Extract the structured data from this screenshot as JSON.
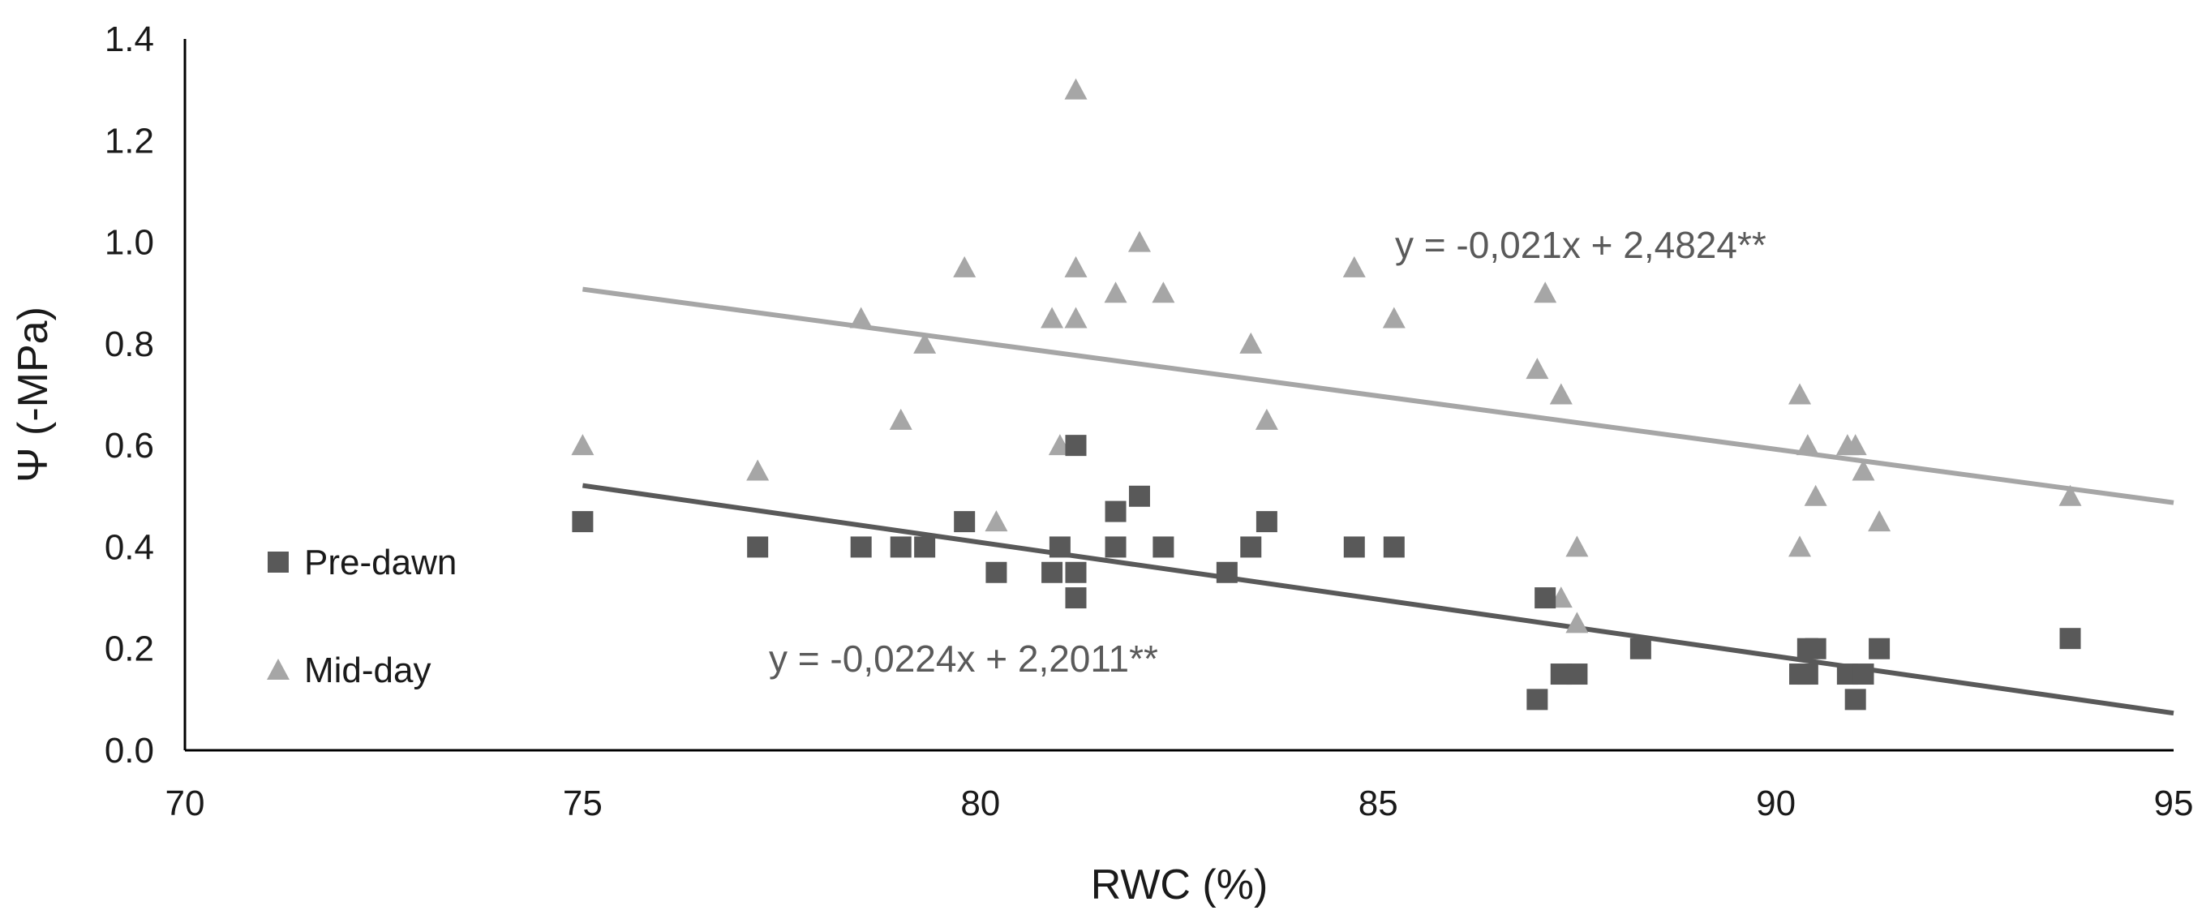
{
  "chart_data": {
    "type": "scatter",
    "title": "",
    "xlabel": "RWC (%)",
    "ylabel": "Ψ (-MPa)",
    "xlim": [
      70,
      95
    ],
    "ylim": [
      0,
      1.4
    ],
    "x_ticks": [
      "70",
      "75",
      "80",
      "85",
      "90",
      "95"
    ],
    "y_ticks": [
      "0.0",
      "0.2",
      "0.4",
      "0.6",
      "0.8",
      "1.0",
      "1.2",
      "1.4"
    ],
    "legend_position": "left",
    "series": [
      {
        "name": "Pre-dawn",
        "marker": "square",
        "color": "#595959",
        "trend_color": "#595959",
        "trend_equation": "y = -0,0224x + 2,2011**",
        "trend": {
          "slope": -0.0224,
          "intercept": 2.2011,
          "x_range": [
            75,
            95
          ]
        },
        "points": [
          [
            75.0,
            0.45
          ],
          [
            77.2,
            0.4
          ],
          [
            78.5,
            0.4
          ],
          [
            79.0,
            0.4
          ],
          [
            79.3,
            0.4
          ],
          [
            79.8,
            0.45
          ],
          [
            80.2,
            0.35
          ],
          [
            81.0,
            0.4
          ],
          [
            80.9,
            0.35
          ],
          [
            81.2,
            0.35
          ],
          [
            81.2,
            0.3
          ],
          [
            81.2,
            0.6
          ],
          [
            81.7,
            0.47
          ],
          [
            81.7,
            0.4
          ],
          [
            82.0,
            0.5
          ],
          [
            82.3,
            0.4
          ],
          [
            83.1,
            0.35
          ],
          [
            83.4,
            0.4
          ],
          [
            83.6,
            0.45
          ],
          [
            84.7,
            0.4
          ],
          [
            85.2,
            0.4
          ],
          [
            87.1,
            0.3
          ],
          [
            87.0,
            0.1
          ],
          [
            87.3,
            0.15
          ],
          [
            87.5,
            0.15
          ],
          [
            88.3,
            0.2
          ],
          [
            90.3,
            0.15
          ],
          [
            90.4,
            0.2
          ],
          [
            90.5,
            0.2
          ],
          [
            90.4,
            0.15
          ],
          [
            90.9,
            0.15
          ],
          [
            91.0,
            0.1
          ],
          [
            91.1,
            0.15
          ],
          [
            91.3,
            0.2
          ],
          [
            93.7,
            0.22
          ]
        ]
      },
      {
        "name": "Mid-day",
        "marker": "triangle",
        "color": "#a6a6a6",
        "trend_color": "#a6a6a6",
        "trend_equation": "y = -0,021x + 2,4824**",
        "trend": {
          "slope": -0.021,
          "intercept": 2.4824,
          "x_range": [
            75,
            95
          ]
        },
        "points": [
          [
            75.0,
            0.6
          ],
          [
            77.2,
            0.55
          ],
          [
            78.5,
            0.85
          ],
          [
            79.0,
            0.65
          ],
          [
            79.3,
            0.8
          ],
          [
            79.8,
            0.95
          ],
          [
            80.2,
            0.45
          ],
          [
            80.9,
            0.85
          ],
          [
            81.0,
            0.6
          ],
          [
            81.2,
            1.3
          ],
          [
            81.2,
            0.95
          ],
          [
            81.2,
            0.85
          ],
          [
            81.7,
            0.9
          ],
          [
            82.0,
            1.0
          ],
          [
            82.3,
            0.9
          ],
          [
            83.4,
            0.8
          ],
          [
            83.6,
            0.65
          ],
          [
            84.7,
            0.95
          ],
          [
            85.2,
            0.85
          ],
          [
            87.0,
            0.75
          ],
          [
            87.1,
            0.9
          ],
          [
            87.3,
            0.7
          ],
          [
            87.3,
            0.3
          ],
          [
            87.5,
            0.4
          ],
          [
            87.5,
            0.25
          ],
          [
            90.3,
            0.7
          ],
          [
            90.3,
            0.4
          ],
          [
            90.4,
            0.6
          ],
          [
            90.5,
            0.5
          ],
          [
            90.9,
            0.6
          ],
          [
            91.0,
            0.6
          ],
          [
            91.1,
            0.55
          ],
          [
            91.3,
            0.45
          ],
          [
            93.7,
            0.5
          ]
        ]
      }
    ]
  }
}
